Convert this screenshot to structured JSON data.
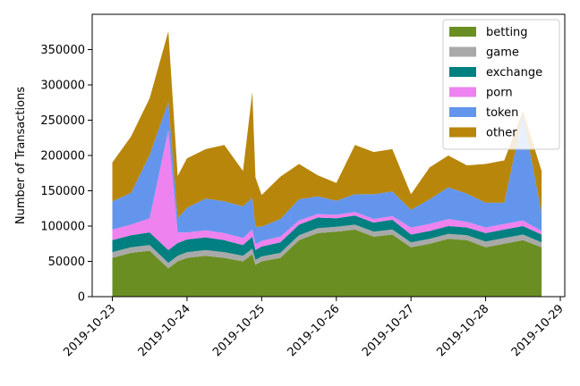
{
  "chart_data": {
    "type": "area",
    "stacked": true,
    "title": "",
    "xlabel": "",
    "ylabel": "Number of Transactions",
    "xlim": [
      "2019-10-23 00:00",
      "2019-10-29 00:00"
    ],
    "ylim": [
      0,
      400000
    ],
    "x_ticks": [
      "2019-10-23",
      "2019-10-24",
      "2019-10-25",
      "2019-10-26",
      "2019-10-27",
      "2019-10-28",
      "2019-10-29"
    ],
    "y_ticks": [
      0,
      50000,
      100000,
      150000,
      200000,
      250000,
      300000,
      350000
    ],
    "y_tick_labels": [
      "0",
      "50000",
      "100000",
      "150000",
      "200000",
      "250000",
      "300000",
      "350000"
    ],
    "legend_position": "top-right",
    "grid": false,
    "x": [
      "2019-10-23 00:00",
      "2019-10-23 06:00",
      "2019-10-23 12:00",
      "2019-10-23 18:00",
      "2019-10-23 21:00",
      "2019-10-24 00:00",
      "2019-10-24 06:00",
      "2019-10-24 12:00",
      "2019-10-24 18:00",
      "2019-10-24 21:00",
      "2019-10-24 22:00",
      "2019-10-25 00:00",
      "2019-10-25 06:00",
      "2019-10-25 12:00",
      "2019-10-25 18:00",
      "2019-10-26 00:00",
      "2019-10-26 06:00",
      "2019-10-26 12:00",
      "2019-10-26 18:00",
      "2019-10-27 00:00",
      "2019-10-27 06:00",
      "2019-10-27 12:00",
      "2019-10-27 18:00",
      "2019-10-28 00:00",
      "2019-10-28 06:00",
      "2019-10-28 12:00",
      "2019-10-28 18:00"
    ],
    "series": [
      {
        "name": "betting",
        "color": "#6b8e23",
        "values": [
          55000,
          62000,
          65000,
          40000,
          50000,
          55000,
          58000,
          55000,
          50000,
          60000,
          45000,
          50000,
          55000,
          80000,
          90000,
          92000,
          95000,
          85000,
          88000,
          70000,
          75000,
          82000,
          80000,
          70000,
          75000,
          80000,
          70000
        ]
      },
      {
        "name": "game",
        "color": "#a9a9a9",
        "values": [
          8000,
          8000,
          8000,
          8000,
          8000,
          8000,
          8000,
          8000,
          8000,
          8000,
          7000,
          7000,
          7000,
          7000,
          7000,
          7000,
          7000,
          7000,
          7000,
          7000,
          7000,
          7000,
          7000,
          8000,
          8000,
          8000,
          7000
        ]
      },
      {
        "name": "exchange",
        "color": "#008080",
        "values": [
          17000,
          17000,
          18000,
          18000,
          18000,
          18000,
          18000,
          17000,
          15000,
          17000,
          14000,
          14000,
          15000,
          15000,
          15000,
          12000,
          13000,
          13000,
          14000,
          11000,
          11000,
          11000,
          11000,
          12000,
          12000,
          12000,
          11000
        ]
      },
      {
        "name": "porn",
        "color": "#ee82ee",
        "values": [
          15000,
          15000,
          20000,
          170000,
          15000,
          10000,
          10000,
          10000,
          10000,
          10000,
          8000,
          8000,
          8000,
          6000,
          5000,
          5000,
          5000,
          5000,
          5000,
          10000,
          10000,
          10000,
          8000,
          8000,
          8000,
          8000,
          5000
        ]
      },
      {
        "name": "token",
        "color": "#6495ed",
        "values": [
          40000,
          45000,
          90000,
          40000,
          20000,
          35000,
          45000,
          45000,
          45000,
          45000,
          25000,
          20000,
          25000,
          30000,
          25000,
          20000,
          25000,
          35000,
          35000,
          25000,
          35000,
          45000,
          40000,
          35000,
          30000,
          150000,
          25000
        ]
      },
      {
        "name": "other",
        "color": "#b8860b",
        "values": [
          55000,
          80000,
          80000,
          100000,
          60000,
          70000,
          70000,
          80000,
          50000,
          150000,
          70000,
          45000,
          60000,
          50000,
          30000,
          25000,
          70000,
          60000,
          60000,
          22000,
          45000,
          45000,
          40000,
          55000,
          60000,
          5000,
          60000
        ]
      }
    ]
  }
}
